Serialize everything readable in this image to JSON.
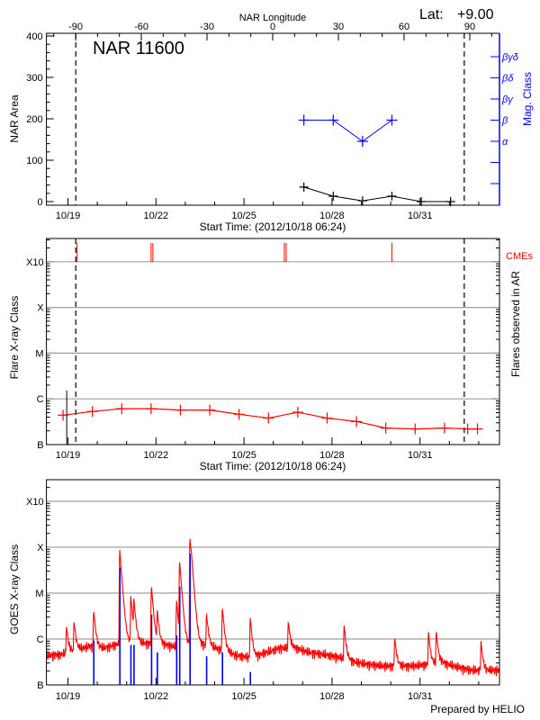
{
  "header": {
    "lat_label": "Lat:",
    "lat_value": "+9.00",
    "prepared_by": "Prepared by HELIO"
  },
  "colors": {
    "area": "#000000",
    "mag_class": "#0000ff",
    "flares": "#ff0000",
    "cmes": "#ff0000",
    "goes_long": "#ff0000",
    "goes_short": "#0000ff",
    "grid": "#a0a0a0"
  },
  "chart_data": [
    {
      "type": "line",
      "title": "NAR 11600",
      "xlabel": "Start Time: (2012/10/18 06:24)",
      "x_top_label": "NAR Longitude",
      "ylabel": "NAR Area",
      "y2label": "Mag. Class",
      "xlim": [
        "2012-10-18 06:24",
        "2012-11-02 17:00"
      ],
      "date_ticks": [
        "10/19",
        "10/22",
        "10/25",
        "10/28",
        "10/31"
      ],
      "longitude_ticks": [
        "-90",
        "-60",
        "-30",
        "0",
        "30",
        "60",
        "90"
      ],
      "ylim": [
        0,
        400
      ],
      "yticks": [
        "0",
        "100",
        "200",
        "300",
        "400"
      ],
      "mag_class_ticks": [
        "",
        "",
        "",
        "α",
        "β",
        "βγ",
        "βδ",
        "βγδ"
      ],
      "limb_lines": [
        "2012-10-19 06:24",
        "2012-11-01 12:10"
      ],
      "series": [
        {
          "name": "NAR Area",
          "points": [
            {
              "t": "2012-10-27 01:00",
              "v": 35
            },
            {
              "t": "2012-10-28 01:00",
              "v": 13
            },
            {
              "t": "2012-10-29 01:00",
              "v": 2
            },
            {
              "t": "2012-10-30 01:00",
              "v": 13
            },
            {
              "t": "2012-10-31 01:00",
              "v": 0
            },
            {
              "t": "2012-11-01 01:00",
              "v": 0
            }
          ]
        },
        {
          "name": "Mag. Class",
          "points": [
            {
              "t": "2012-10-27 01:00",
              "v": "β"
            },
            {
              "t": "2012-10-28 01:00",
              "v": "β"
            },
            {
              "t": "2012-10-29 01:00",
              "v": "α"
            },
            {
              "t": "2012-10-30 01:00",
              "v": "β"
            }
          ]
        }
      ]
    },
    {
      "type": "line",
      "xlabel": "Start Time: (2012/10/18 06:24)",
      "ylabel": "Flare X-ray Class",
      "y2label": "Flares observed in AR",
      "cme_label": "CMEs",
      "xlim": [
        "2012-10-18 06:24",
        "2012-11-02 17:00"
      ],
      "date_ticks": [
        "10/19",
        "10/22",
        "10/25",
        "10/28",
        "10/31"
      ],
      "yscale": "log",
      "yticks": [
        "B",
        "C",
        "M",
        "X",
        "X10"
      ],
      "grid": true,
      "limb_lines": [
        "2012-10-19 06:24",
        "2012-11-01 12:10"
      ],
      "marker_line": "2012-10-18 23:00",
      "cmes": [
        "2012-10-19 07:30",
        "2012-10-21 20:00",
        "2012-10-21 21:30",
        "2012-10-26 09:00",
        "2012-10-26 10:30",
        "2012-10-30 01:00"
      ],
      "series": [
        {
          "points": [
            {
              "t": "2012-10-18 20:00",
              "v": "B4.4"
            },
            {
              "t": "2012-10-19 20:00",
              "v": "B5.3"
            },
            {
              "t": "2012-10-20 20:00",
              "v": "B6.1"
            },
            {
              "t": "2012-10-21 20:00",
              "v": "B6.1"
            },
            {
              "t": "2012-10-22 20:00",
              "v": "B5.7"
            },
            {
              "t": "2012-10-23 20:00",
              "v": "B5.7"
            },
            {
              "t": "2012-10-24 20:00",
              "v": "B4.6"
            },
            {
              "t": "2012-10-25 20:00",
              "v": "B3.8"
            },
            {
              "t": "2012-10-26 20:00",
              "v": "B5.1"
            },
            {
              "t": "2012-10-27 20:00",
              "v": "B3.8"
            },
            {
              "t": "2012-10-28 20:00",
              "v": "B3.2"
            },
            {
              "t": "2012-10-29 20:00",
              "v": "B2.3"
            },
            {
              "t": "2012-10-30 20:00",
              "v": "B2.2"
            },
            {
              "t": "2012-10-31 20:00",
              "v": "B2.3"
            },
            {
              "t": "2012-11-01 15:00",
              "v": "B2.2"
            },
            {
              "t": "2012-11-01 23:00",
              "v": "B2.2"
            }
          ]
        }
      ]
    },
    {
      "type": "line",
      "ylabel": "GOES X-ray Class",
      "xlim": [
        "2012-10-18 06:24",
        "2012-11-02 17:00"
      ],
      "date_ticks": [
        "10/19",
        "10/22",
        "10/25",
        "10/28",
        "10/31"
      ],
      "yscale": "log",
      "yticks": [
        "B",
        "C",
        "M",
        "X",
        "X10"
      ],
      "grid": true,
      "goes_long_background": [
        {
          "t": "2012-10-18 06:00",
          "v": "B4.4"
        },
        {
          "t": "2012-10-18 18:00",
          "v": "B4.6"
        },
        {
          "t": "2012-10-19 06:00",
          "v": "B5.8"
        },
        {
          "t": "2012-10-19 18:00",
          "v": "B7.0"
        },
        {
          "t": "2012-10-20 06:00",
          "v": "B6.4"
        },
        {
          "t": "2012-10-20 18:00",
          "v": "B8.0"
        },
        {
          "t": "2012-10-21 06:00",
          "v": "B8.7"
        },
        {
          "t": "2012-10-21 18:00",
          "v": "B8.0"
        },
        {
          "t": "2012-10-22 06:00",
          "v": "B7.6"
        },
        {
          "t": "2012-10-22 18:00",
          "v": "B6.7"
        },
        {
          "t": "2012-10-23 06:00",
          "v": "B8.0"
        },
        {
          "t": "2012-10-23 18:00",
          "v": "B7.3"
        },
        {
          "t": "2012-10-24 06:00",
          "v": "B5.8"
        },
        {
          "t": "2012-10-24 18:00",
          "v": "B4.4"
        },
        {
          "t": "2012-10-25 06:00",
          "v": "B3.9"
        },
        {
          "t": "2012-10-25 18:00",
          "v": "B5.1"
        },
        {
          "t": "2012-10-26 06:00",
          "v": "B6.4"
        },
        {
          "t": "2012-10-26 18:00",
          "v": "B6.4"
        },
        {
          "t": "2012-10-27 06:00",
          "v": "B5.1"
        },
        {
          "t": "2012-10-27 18:00",
          "v": "B4.6"
        },
        {
          "t": "2012-10-28 06:00",
          "v": "B4.0"
        },
        {
          "t": "2012-10-28 18:00",
          "v": "B3.2"
        },
        {
          "t": "2012-10-29 06:00",
          "v": "B2.8"
        },
        {
          "t": "2012-10-29 18:00",
          "v": "B2.6"
        },
        {
          "t": "2012-10-30 06:00",
          "v": "B2.6"
        },
        {
          "t": "2012-10-30 18:00",
          "v": "B2.6"
        },
        {
          "t": "2012-10-31 06:00",
          "v": "B2.8"
        },
        {
          "t": "2012-10-31 18:00",
          "v": "B3.1"
        },
        {
          "t": "2012-11-01 06:00",
          "v": "B2.5"
        },
        {
          "t": "2012-11-01 18:00",
          "v": "B2.1"
        },
        {
          "t": "2012-11-02 06:00",
          "v": "B2.1"
        }
      ],
      "goes_long_peaks": [
        {
          "t": "2012-10-18 22:45",
          "v": "C1.5"
        },
        {
          "t": "2012-10-19 04:56",
          "v": "C2.0"
        },
        {
          "t": "2012-10-19 21:00",
          "v": "C3.7"
        },
        {
          "t": "2012-10-20 18:20",
          "v": "M9.1"
        },
        {
          "t": "2012-10-21 03:23",
          "v": "C8.0"
        },
        {
          "t": "2012-10-21 05:53",
          "v": "C5.8"
        },
        {
          "t": "2012-10-21 20:15",
          "v": "M1.4"
        },
        {
          "t": "2012-10-22 01:00",
          "v": "C3.4"
        },
        {
          "t": "2012-10-22 16:48",
          "v": "C6.5"
        },
        {
          "t": "2012-10-22 19:17",
          "v": "M5.0"
        },
        {
          "t": "2012-10-23 03:45",
          "v": "X1.7"
        },
        {
          "t": "2012-10-23 04:52",
          "v": "M1.8"
        },
        {
          "t": "2012-10-23 17:18",
          "v": "C3.0"
        },
        {
          "t": "2012-10-24 06:15",
          "v": "C4.5"
        },
        {
          "t": "2012-10-25 05:05",
          "v": "C2.6"
        },
        {
          "t": "2012-10-26 12:12",
          "v": "C1.9"
        },
        {
          "t": "2012-10-28 09:51",
          "v": "C1.7"
        },
        {
          "t": "2012-10-30 03:14",
          "v": "B8.7"
        },
        {
          "t": "2012-10-31 06:50",
          "v": "C1.2"
        },
        {
          "t": "2012-10-31 13:14",
          "v": "C1.2"
        },
        {
          "t": "2012-11-02 01:50",
          "v": "B6.9"
        }
      ],
      "goes_short_peaks": [
        {
          "t": "2012-10-19 21:00",
          "v": "B9.3"
        },
        {
          "t": "2012-10-20 18:20",
          "v": "M3.6"
        },
        {
          "t": "2012-10-21 03:23",
          "v": "B7.4"
        },
        {
          "t": "2012-10-21 05:53",
          "v": "B7.4"
        },
        {
          "t": "2012-10-21 20:15",
          "v": "C3.4"
        },
        {
          "t": "2012-10-22 01:00",
          "v": "B5.1"
        },
        {
          "t": "2012-10-22 16:48",
          "v": "C1.2"
        },
        {
          "t": "2012-10-22 19:17",
          "v": "M1.4"
        },
        {
          "t": "2012-10-23 03:45",
          "v": "M7.3"
        },
        {
          "t": "2012-10-23 17:18",
          "v": "B4.2"
        },
        {
          "t": "2012-10-24 06:15",
          "v": "B5.1"
        },
        {
          "t": "2012-10-25 05:05",
          "v": "B1.9"
        }
      ]
    }
  ]
}
